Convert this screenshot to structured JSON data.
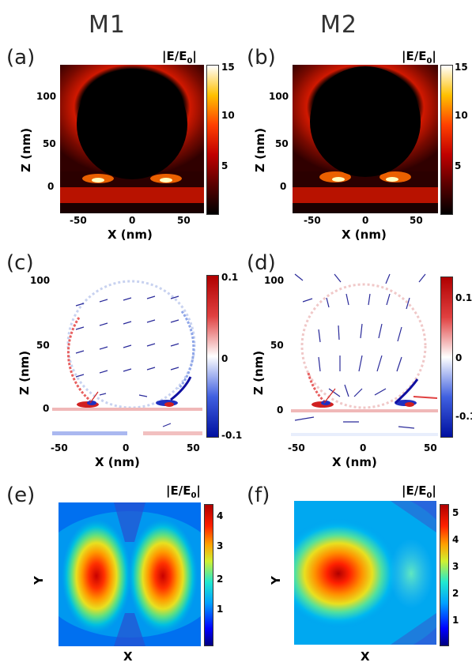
{
  "columns": {
    "left": "M1",
    "right": "M2"
  },
  "panels": {
    "a": {
      "label": "(a)",
      "cbar_title": "|E/E",
      "cbar_sub": "0",
      "cbar_title_end": "|",
      "cbar_ticks": [
        "15",
        "10",
        "5"
      ],
      "yticks": [
        "100",
        "50",
        "0"
      ],
      "xticks": [
        "-50",
        "0",
        "50"
      ],
      "xlabel": "X (nm)",
      "ylabel": "Z (nm)"
    },
    "b": {
      "label": "(b)",
      "cbar_title": "|E/E",
      "cbar_sub": "0",
      "cbar_title_end": "|",
      "cbar_ticks": [
        "15",
        "10",
        "5"
      ],
      "yticks": [
        "100",
        "50",
        "0"
      ],
      "xticks": [
        "-50",
        "0",
        "50"
      ],
      "xlabel": "X (nm)",
      "ylabel": "Z (nm)"
    },
    "c": {
      "label": "(c)",
      "cbar_ticks": [
        "0.1",
        "0",
        "-0.1"
      ],
      "yticks": [
        "100",
        "50",
        "0"
      ],
      "xticks": [
        "-50",
        "0",
        "50"
      ],
      "xlabel": "X (nm)",
      "ylabel": "Z (nm)"
    },
    "d": {
      "label": "(d)",
      "cbar_ticks": [
        "0.1",
        "0",
        "-0.1"
      ],
      "yticks": [
        "100",
        "50",
        "0"
      ],
      "xticks": [
        "-50",
        "0",
        "50"
      ],
      "xlabel": "X (nm)",
      "ylabel": "Z (nm)"
    },
    "e": {
      "label": "(e)",
      "cbar_title": "|E/E",
      "cbar_sub": "0",
      "cbar_title_end": "|",
      "cbar_ticks": [
        "4",
        "3",
        "2",
        "1"
      ],
      "xlabel": "X",
      "ylabel": "Y"
    },
    "f": {
      "label": "(f)",
      "cbar_title": "|E/E",
      "cbar_sub": "0",
      "cbar_title_end": "|",
      "cbar_ticks": [
        "5",
        "4",
        "3",
        "2",
        "1"
      ],
      "xlabel": "X",
      "ylabel": "Y"
    }
  },
  "colors": {
    "hot_dark": "#1a0000",
    "hot_red": "#cc1a00",
    "jet_blue": "#0030d0",
    "jet_red": "#e00000",
    "arrow": "#2a2a9a"
  }
}
